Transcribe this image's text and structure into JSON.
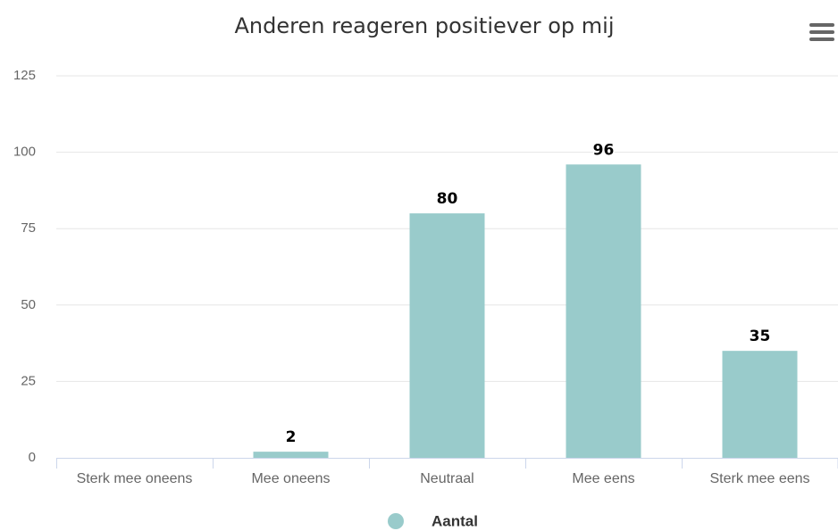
{
  "chart_data": {
    "type": "bar",
    "title": "Anderen reageren positiever op mij",
    "categories": [
      "Sterk mee oneens",
      "Mee oneens",
      "Neutraal",
      "Mee eens",
      "Sterk mee eens"
    ],
    "series": [
      {
        "name": "Aantal",
        "color": "#99cbcb",
        "values": [
          null,
          2,
          80,
          96,
          35
        ]
      }
    ],
    "ylim": [
      0,
      125
    ],
    "yticks": [
      0,
      25,
      50,
      75,
      100,
      125
    ],
    "grid": true
  }
}
